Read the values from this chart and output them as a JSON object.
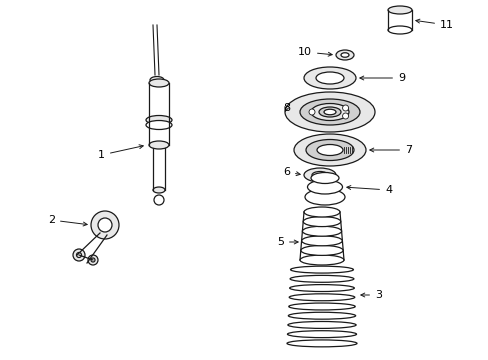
{
  "background_color": "#ffffff",
  "fig_width": 4.89,
  "fig_height": 3.6,
  "dpi": 100,
  "line_color": "#1a1a1a",
  "face_color": "#ffffff",
  "gray_light": "#e8e8e8",
  "gray_mid": "#d0d0d0"
}
